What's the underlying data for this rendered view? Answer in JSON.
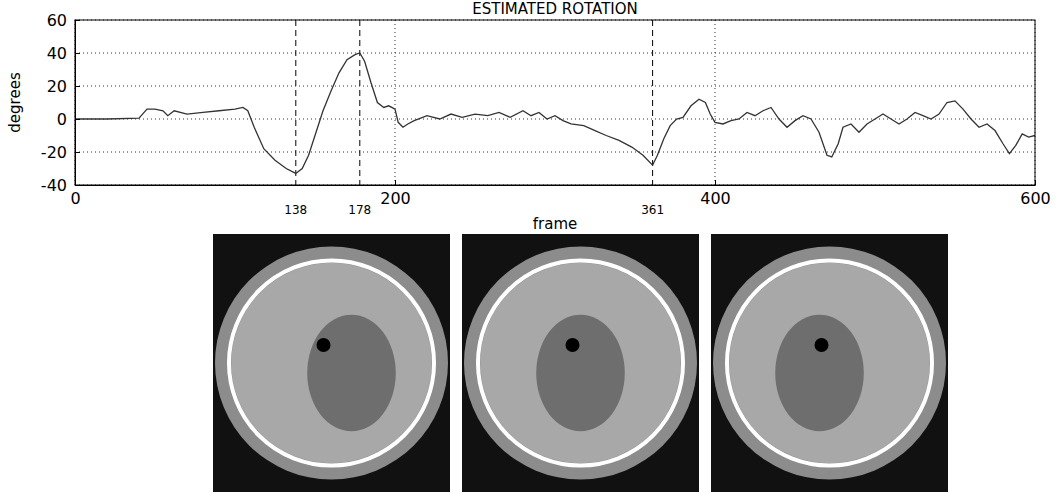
{
  "chart_data": {
    "type": "line",
    "title": "ESTIMATED ROTATION",
    "x_label": "frame",
    "y_label": "degrees",
    "color": "#333333",
    "grid": true,
    "xlim": [
      0,
      600
    ],
    "ylim": [
      -40,
      60
    ],
    "xticks": [
      0,
      200,
      400,
      600
    ],
    "yticks": [
      -40,
      -20,
      0,
      20,
      40,
      60
    ],
    "annotations": [
      {
        "x": 138
      },
      {
        "x": 178
      },
      {
        "x": 361
      }
    ],
    "x": [
      0,
      20,
      40,
      45,
      50,
      55,
      58,
      62,
      70,
      80,
      90,
      100,
      105,
      108,
      112,
      118,
      125,
      132,
      138,
      142,
      146,
      150,
      155,
      160,
      165,
      170,
      175,
      178,
      181,
      185,
      189,
      193,
      196,
      198,
      200,
      202,
      205,
      208,
      212,
      220,
      228,
      235,
      242,
      250,
      258,
      265,
      272,
      280,
      285,
      290,
      295,
      300,
      305,
      310,
      318,
      325,
      332,
      340,
      348,
      355,
      361,
      364,
      368,
      372,
      376,
      380,
      385,
      390,
      394,
      397,
      400,
      405,
      410,
      415,
      420,
      425,
      430,
      435,
      440,
      445,
      450,
      455,
      460,
      465,
      470,
      473,
      477,
      480,
      485,
      490,
      495,
      500,
      505,
      510,
      515,
      520,
      525,
      530,
      535,
      540,
      545,
      550,
      555,
      560,
      565,
      570,
      575,
      580,
      584,
      588,
      592,
      596,
      600
    ],
    "values": [
      0,
      0,
      0.5,
      6,
      6,
      5,
      2,
      5,
      3,
      4,
      5,
      6,
      7,
      5,
      -5,
      -18,
      -25,
      -30,
      -33,
      -30,
      -22,
      -10,
      5,
      17,
      28,
      36,
      39,
      40,
      35,
      22,
      10,
      7,
      8,
      7,
      6,
      -2,
      -5,
      -3,
      -1,
      2,
      0,
      3,
      1,
      3,
      2,
      4,
      1,
      5,
      2,
      4,
      0,
      2,
      -1,
      -3,
      -4,
      -7,
      -10,
      -13,
      -17,
      -22,
      -28,
      -22,
      -12,
      -4,
      0,
      1,
      8,
      12,
      10,
      3,
      -2,
      -3,
      -1,
      0,
      4,
      2,
      5,
      7,
      0,
      -5,
      -1,
      2,
      0,
      -8,
      -22,
      -23,
      -15,
      -5,
      -3,
      -8,
      -3,
      0,
      3,
      0,
      -3,
      0,
      4,
      2,
      0,
      3,
      10,
      11,
      6,
      0,
      -5,
      -3,
      -7,
      -15,
      -21,
      -16,
      -9,
      -11,
      -10
    ]
  }
}
